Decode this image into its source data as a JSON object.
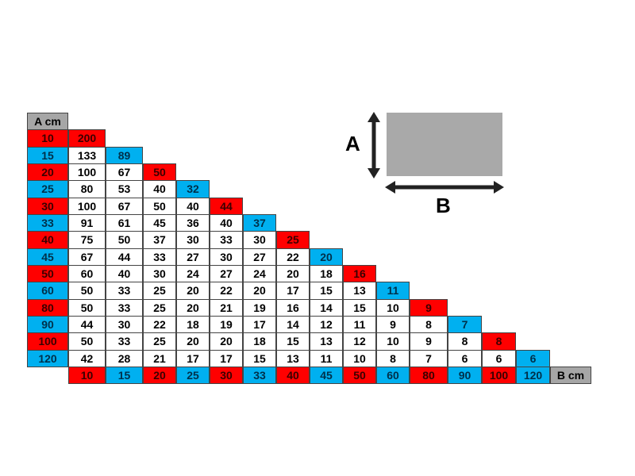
{
  "colors": {
    "red": "#ff0000",
    "blue": "#00b0f0",
    "gray": "#a6a6a6"
  },
  "table": {
    "a_header": "A cm",
    "b_header": "B cm",
    "a_values": [
      "10",
      "15",
      "20",
      "25",
      "30",
      "33",
      "40",
      "45",
      "50",
      "60",
      "80",
      "90",
      "100",
      "120"
    ],
    "b_values": [
      "10",
      "15",
      "20",
      "25",
      "30",
      "33",
      "40",
      "45",
      "50",
      "60",
      "80",
      "90",
      "100",
      "120"
    ],
    "label_colors": [
      "red",
      "blue",
      "red",
      "blue",
      "red",
      "blue",
      "red",
      "blue",
      "red",
      "blue",
      "red",
      "blue",
      "red",
      "blue"
    ],
    "rows": [
      [
        "200"
      ],
      [
        "133",
        "89"
      ],
      [
        "100",
        "67",
        "50"
      ],
      [
        "80",
        "53",
        "40",
        "32"
      ],
      [
        "100",
        "67",
        "50",
        "40",
        "44"
      ],
      [
        "91",
        "61",
        "45",
        "36",
        "40",
        "37"
      ],
      [
        "75",
        "50",
        "37",
        "30",
        "33",
        "30",
        "25"
      ],
      [
        "67",
        "44",
        "33",
        "27",
        "30",
        "27",
        "22",
        "20"
      ],
      [
        "60",
        "40",
        "30",
        "24",
        "27",
        "24",
        "20",
        "18",
        "16"
      ],
      [
        "50",
        "33",
        "25",
        "20",
        "22",
        "20",
        "17",
        "15",
        "13",
        "11"
      ],
      [
        "50",
        "33",
        "25",
        "20",
        "21",
        "19",
        "16",
        "14",
        "15",
        "10",
        "9"
      ],
      [
        "44",
        "30",
        "22",
        "18",
        "19",
        "17",
        "14",
        "12",
        "11",
        "9",
        "8",
        "7"
      ],
      [
        "50",
        "33",
        "25",
        "20",
        "20",
        "18",
        "15",
        "13",
        "12",
        "10",
        "9",
        "8",
        "8"
      ],
      [
        "42",
        "28",
        "21",
        "17",
        "17",
        "15",
        "13",
        "11",
        "10",
        "8",
        "7",
        "6",
        "6",
        "6"
      ]
    ]
  },
  "diagram": {
    "label_a": "A",
    "label_b": "B"
  }
}
